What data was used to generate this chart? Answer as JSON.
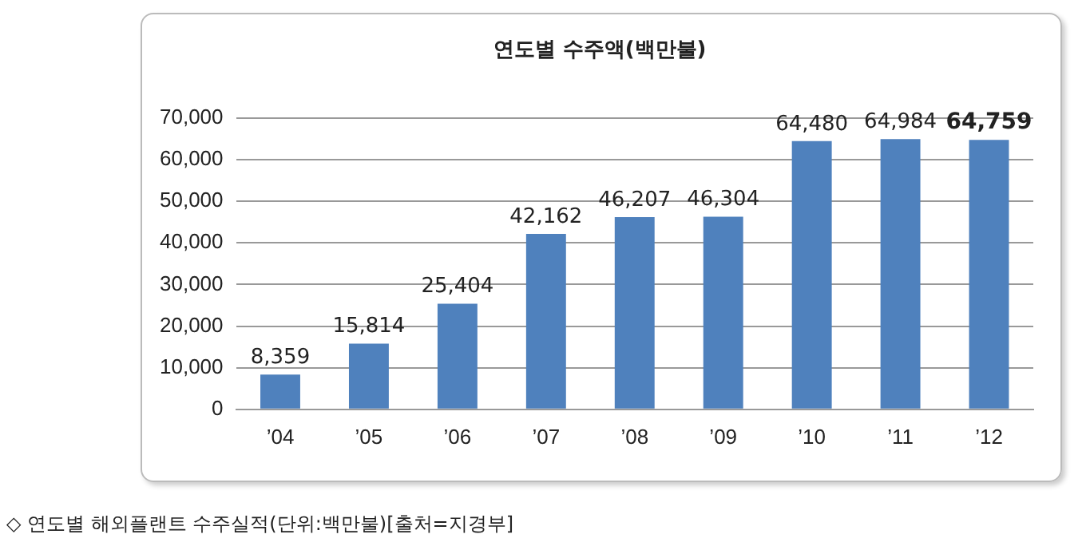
{
  "chart_data": {
    "type": "bar",
    "title": "연도별 수주액",
    "subtitle": "(백만불)",
    "categories": [
      "’04",
      "’05",
      "’06",
      "’07",
      "’08",
      "’09",
      "’10",
      "’11",
      "’12"
    ],
    "values": [
      8359,
      15814,
      25404,
      42162,
      46207,
      46304,
      64480,
      64984,
      64759
    ],
    "value_labels": [
      "8,359",
      "15,814",
      "25,404",
      "42,162",
      "46,207",
      "46,304",
      "64,480",
      "64,984",
      "64,759"
    ],
    "color": "#4f81bd",
    "ylim": [
      0,
      70000
    ],
    "yticks": [
      {
        "value": 0,
        "label": "0"
      },
      {
        "value": 10000,
        "label": "10,000"
      },
      {
        "value": 20000,
        "label": "20,000"
      },
      {
        "value": 30000,
        "label": "30,000"
      },
      {
        "value": 40000,
        "label": "40,000"
      },
      {
        "value": 50000,
        "label": "50,000"
      },
      {
        "value": 60000,
        "label": "60,000"
      },
      {
        "value": 70000,
        "label": "70,000"
      }
    ],
    "grid": "y",
    "annotations": [
      "◇ 연도별 해외플랜트 수주실적(단위:백만불)[출처=지경부]"
    ]
  }
}
